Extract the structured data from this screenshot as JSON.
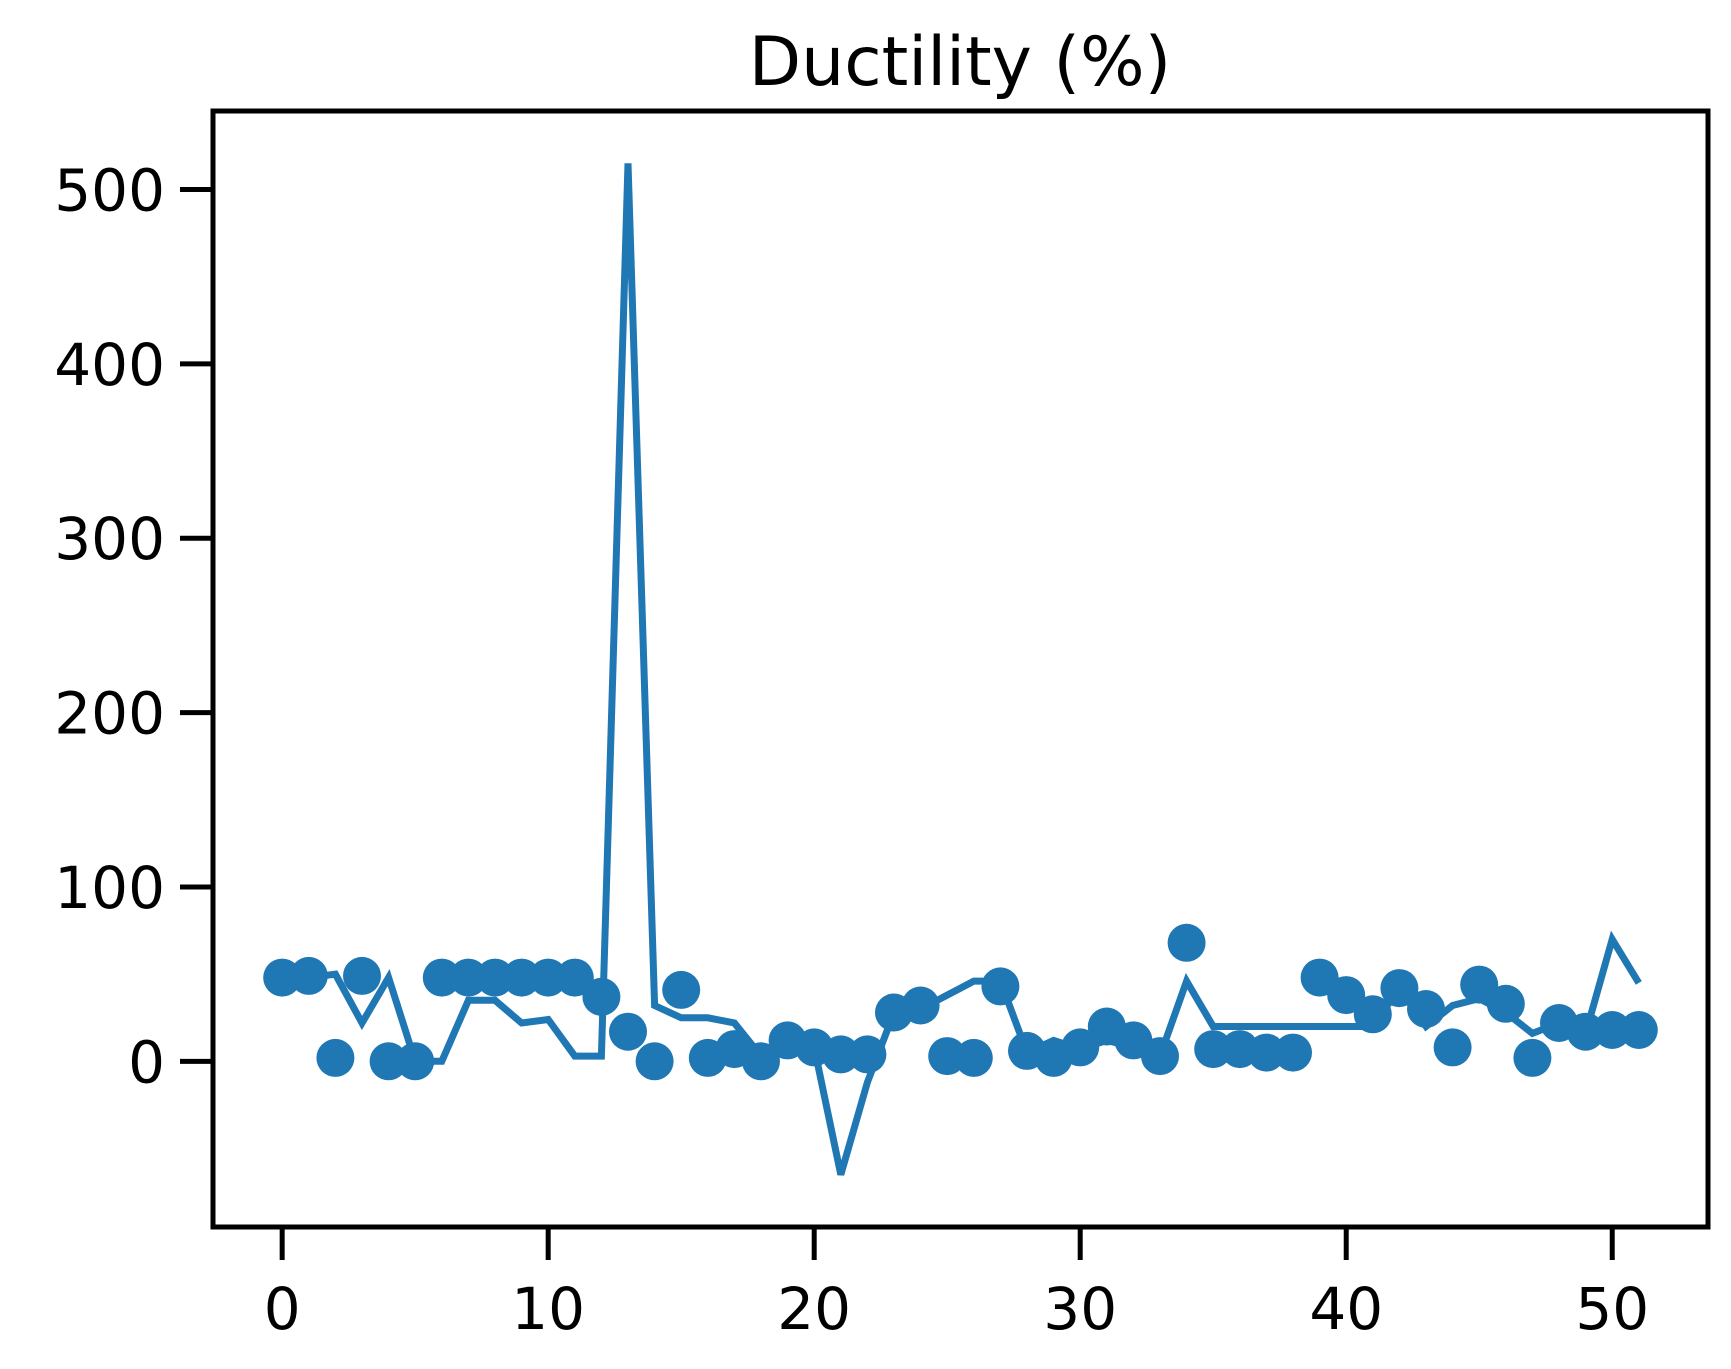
{
  "chart_data": {
    "type": "line",
    "title": "Ductility (%)",
    "xlabel": "",
    "ylabel": "",
    "xlim": [
      -2.6,
      53.6
    ],
    "ylim": [
      -95,
      545
    ],
    "xticks": [
      0,
      10,
      20,
      30,
      40,
      50
    ],
    "yticks": [
      0,
      100,
      200,
      300,
      400,
      500
    ],
    "grid": false,
    "legend": "none",
    "color": "#1f77b4",
    "series": [
      {
        "kind": "line",
        "x": [
          0,
          1,
          2,
          3,
          4,
          5,
          6,
          7,
          8,
          9,
          10,
          11,
          12,
          13,
          14,
          15,
          16,
          17,
          18,
          19,
          20,
          21,
          22,
          23,
          24,
          25,
          26,
          27,
          28,
          29,
          30,
          31,
          32,
          33,
          34,
          35,
          36,
          37,
          38,
          39,
          40,
          41,
          42,
          43,
          44,
          45,
          46,
          47,
          48,
          49,
          50,
          51
        ],
        "y": [
          48,
          48,
          50,
          22,
          48,
          0,
          0,
          35,
          35,
          22,
          24,
          3,
          3,
          515,
          32,
          25,
          25,
          22,
          3,
          12,
          8,
          -65,
          -12,
          28,
          30,
          38,
          46,
          46,
          5,
          12,
          7,
          12,
          8,
          3,
          46,
          20,
          20,
          20,
          20,
          20,
          20,
          20,
          42,
          20,
          32,
          36,
          28,
          16,
          22,
          16,
          70,
          45
        ]
      },
      {
        "kind": "scatter",
        "x": [
          0,
          1,
          2,
          3,
          4,
          5,
          6,
          7,
          8,
          9,
          10,
          11,
          12,
          13,
          14,
          15,
          16,
          17,
          18,
          19,
          20,
          21,
          22,
          23,
          24,
          25,
          26,
          27,
          28,
          29,
          30,
          31,
          32,
          33,
          34,
          35,
          36,
          37,
          38,
          39,
          40,
          41,
          42,
          43,
          44,
          45,
          46,
          47,
          48,
          49,
          50,
          51
        ],
        "y": [
          48,
          49,
          2,
          49,
          0,
          0,
          48,
          48,
          48,
          48,
          48,
          48,
          37,
          17,
          0,
          41,
          2,
          7,
          0,
          12,
          8,
          4,
          4,
          28,
          32,
          3,
          2,
          43,
          6,
          2,
          8,
          20,
          12,
          3,
          68,
          7,
          7,
          5,
          5,
          48,
          38,
          27,
          42,
          30,
          8,
          44,
          33,
          2,
          22,
          17,
          18,
          18
        ]
      }
    ]
  }
}
